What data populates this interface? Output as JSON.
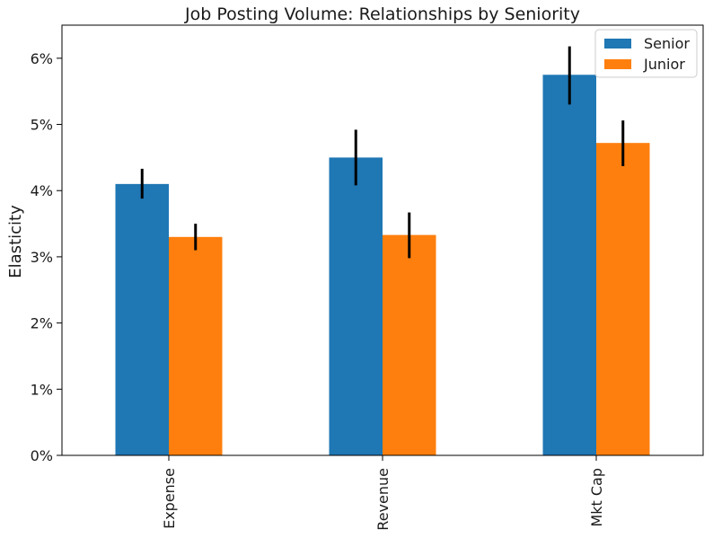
{
  "chart_data": {
    "type": "bar",
    "title": "Job Posting Volume: Relationships by Seniority",
    "xlabel": "",
    "ylabel": "Elasticity",
    "categories": [
      "Expense",
      "Revenue",
      "Mkt Cap"
    ],
    "series": [
      {
        "name": "Senior",
        "color": "#1f77b4",
        "values": [
          4.1,
          4.5,
          5.75
        ],
        "err_low": [
          3.88,
          4.08,
          5.3
        ],
        "err_high": [
          4.33,
          4.92,
          6.18
        ]
      },
      {
        "name": "Junior",
        "color": "#ff7f0e",
        "values": [
          3.3,
          3.33,
          4.72
        ],
        "err_low": [
          3.1,
          2.98,
          4.37
        ],
        "err_high": [
          3.5,
          3.67,
          5.06
        ]
      }
    ],
    "ylim": [
      0,
      6.5
    ],
    "yticks": [
      0,
      1,
      2,
      3,
      4,
      5,
      6
    ],
    "ytick_labels": [
      "0%",
      "1%",
      "2%",
      "3%",
      "4%",
      "5%",
      "6%"
    ],
    "grid": false,
    "legend_position": "top-right"
  }
}
